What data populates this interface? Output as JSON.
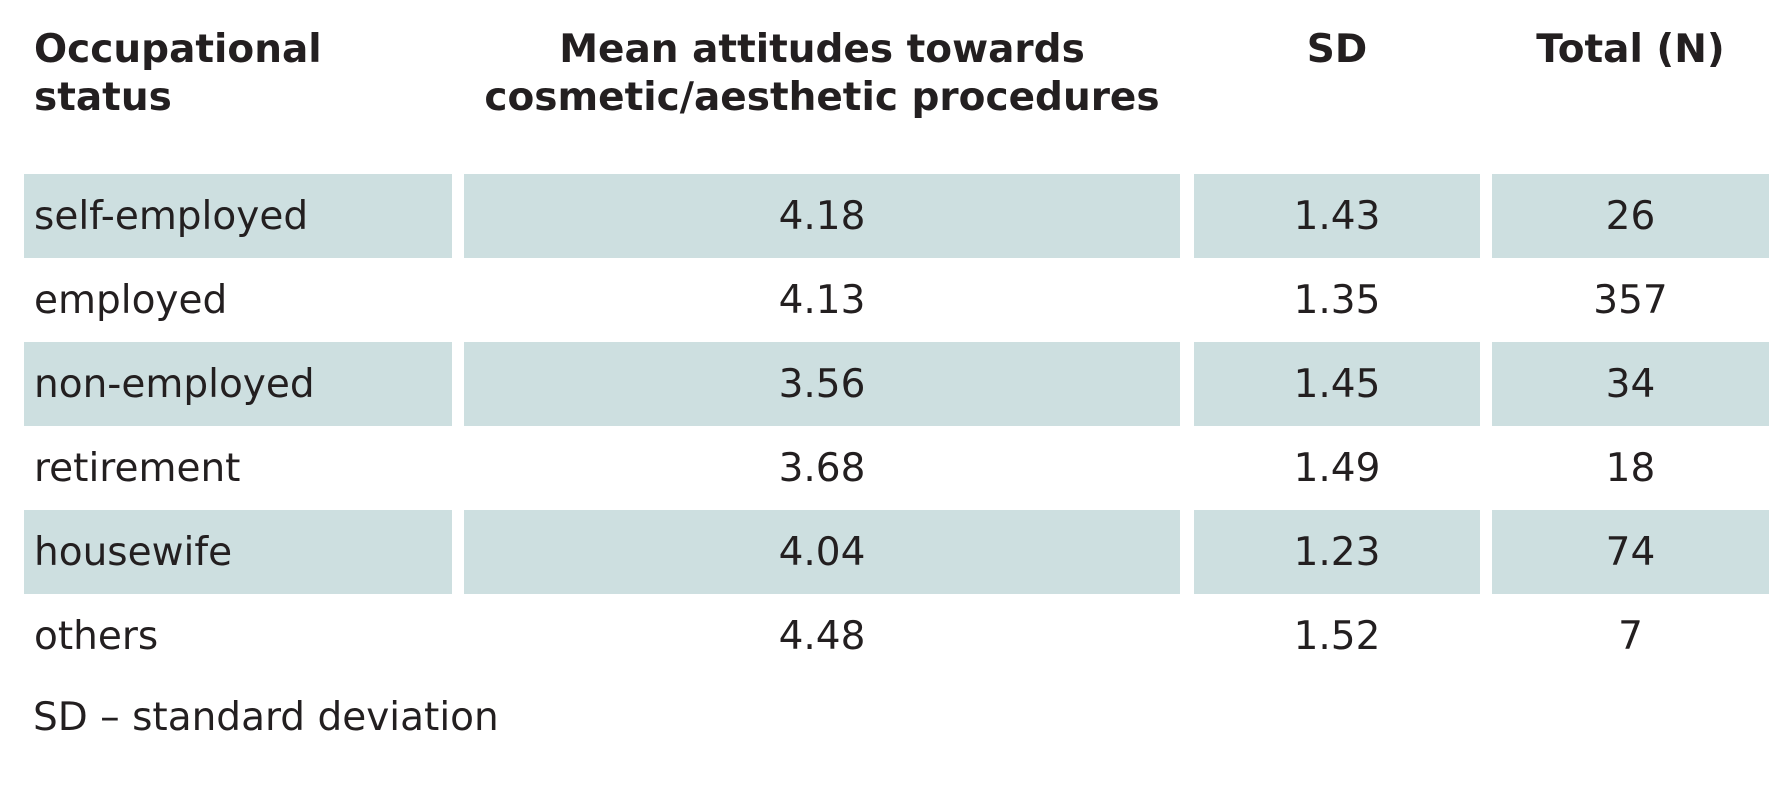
{
  "table": {
    "headers": [
      "Occupational status",
      "Mean attitudes towards cosmetic/aesthetic procedures",
      "SD",
      "Total (N)"
    ],
    "rows": [
      [
        "self-employed",
        "4.18",
        "1.43",
        "26"
      ],
      [
        "employed",
        "4.13",
        "1.35",
        "357"
      ],
      [
        "non-employed",
        "3.56",
        "1.45",
        "34"
      ],
      [
        "retirement",
        "3.68",
        "1.49",
        "18"
      ],
      [
        "housewife",
        "4.04",
        "1.23",
        "74"
      ],
      [
        "others",
        "4.48",
        "1.52",
        "7"
      ]
    ]
  },
  "footnote": "SD – standard deviation",
  "colors": {
    "shaded_row": "#cddfe0",
    "text": "#231f20"
  }
}
